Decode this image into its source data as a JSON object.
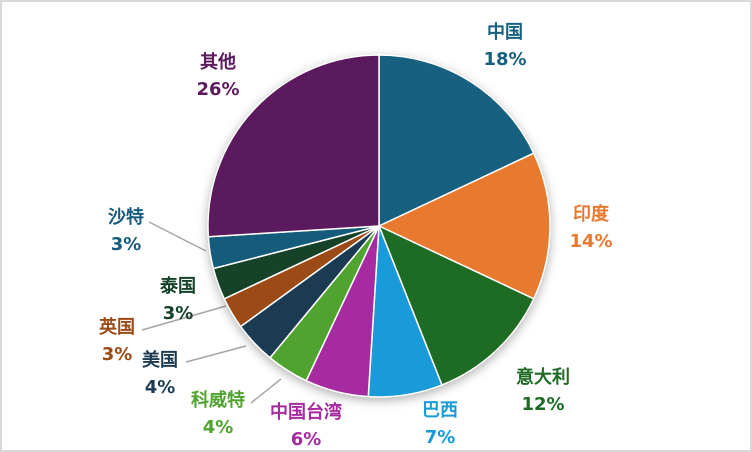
{
  "chart_data": {
    "type": "pie",
    "title": "",
    "legend_position": "none",
    "label_style": "outside, category name + percent, colored to match slice",
    "leader_line_color": "#a6a6a6",
    "background_color": "#ffffff",
    "border_color": "#d9d9d9",
    "start_angle_deg": 0,
    "direction": "clockwise",
    "slices": [
      {
        "key": "china",
        "label": "中国",
        "pct_text": "18%",
        "value": 18,
        "color": "#17607F"
      },
      {
        "key": "india",
        "label": "印度",
        "pct_text": "14%",
        "value": 14,
        "color": "#E87A2F"
      },
      {
        "key": "italy",
        "label": "意大利",
        "pct_text": "12%",
        "value": 12,
        "color": "#1E6B24"
      },
      {
        "key": "brazil",
        "label": "巴西",
        "pct_text": "7%",
        "value": 7,
        "color": "#189BD8"
      },
      {
        "key": "taiwan",
        "label": "中国台湾",
        "pct_text": "6%",
        "value": 6,
        "color": "#A62BA0"
      },
      {
        "key": "kuwait",
        "label": "科威特",
        "pct_text": "4%",
        "value": 4,
        "color": "#4FA32E"
      },
      {
        "key": "usa",
        "label": "美国",
        "pct_text": "4%",
        "value": 4,
        "color": "#1C3B52"
      },
      {
        "key": "uk",
        "label": "英国",
        "pct_text": "3%",
        "value": 3,
        "color": "#9C4A16"
      },
      {
        "key": "thailand",
        "label": "泰国",
        "pct_text": "3%",
        "value": 3,
        "color": "#16422A"
      },
      {
        "key": "saudi",
        "label": "沙特",
        "pct_text": "3%",
        "value": 3,
        "color": "#155B7C"
      },
      {
        "key": "others",
        "label": "其他",
        "pct_text": "26%",
        "value": 26,
        "color": "#5C1A5E"
      }
    ]
  }
}
